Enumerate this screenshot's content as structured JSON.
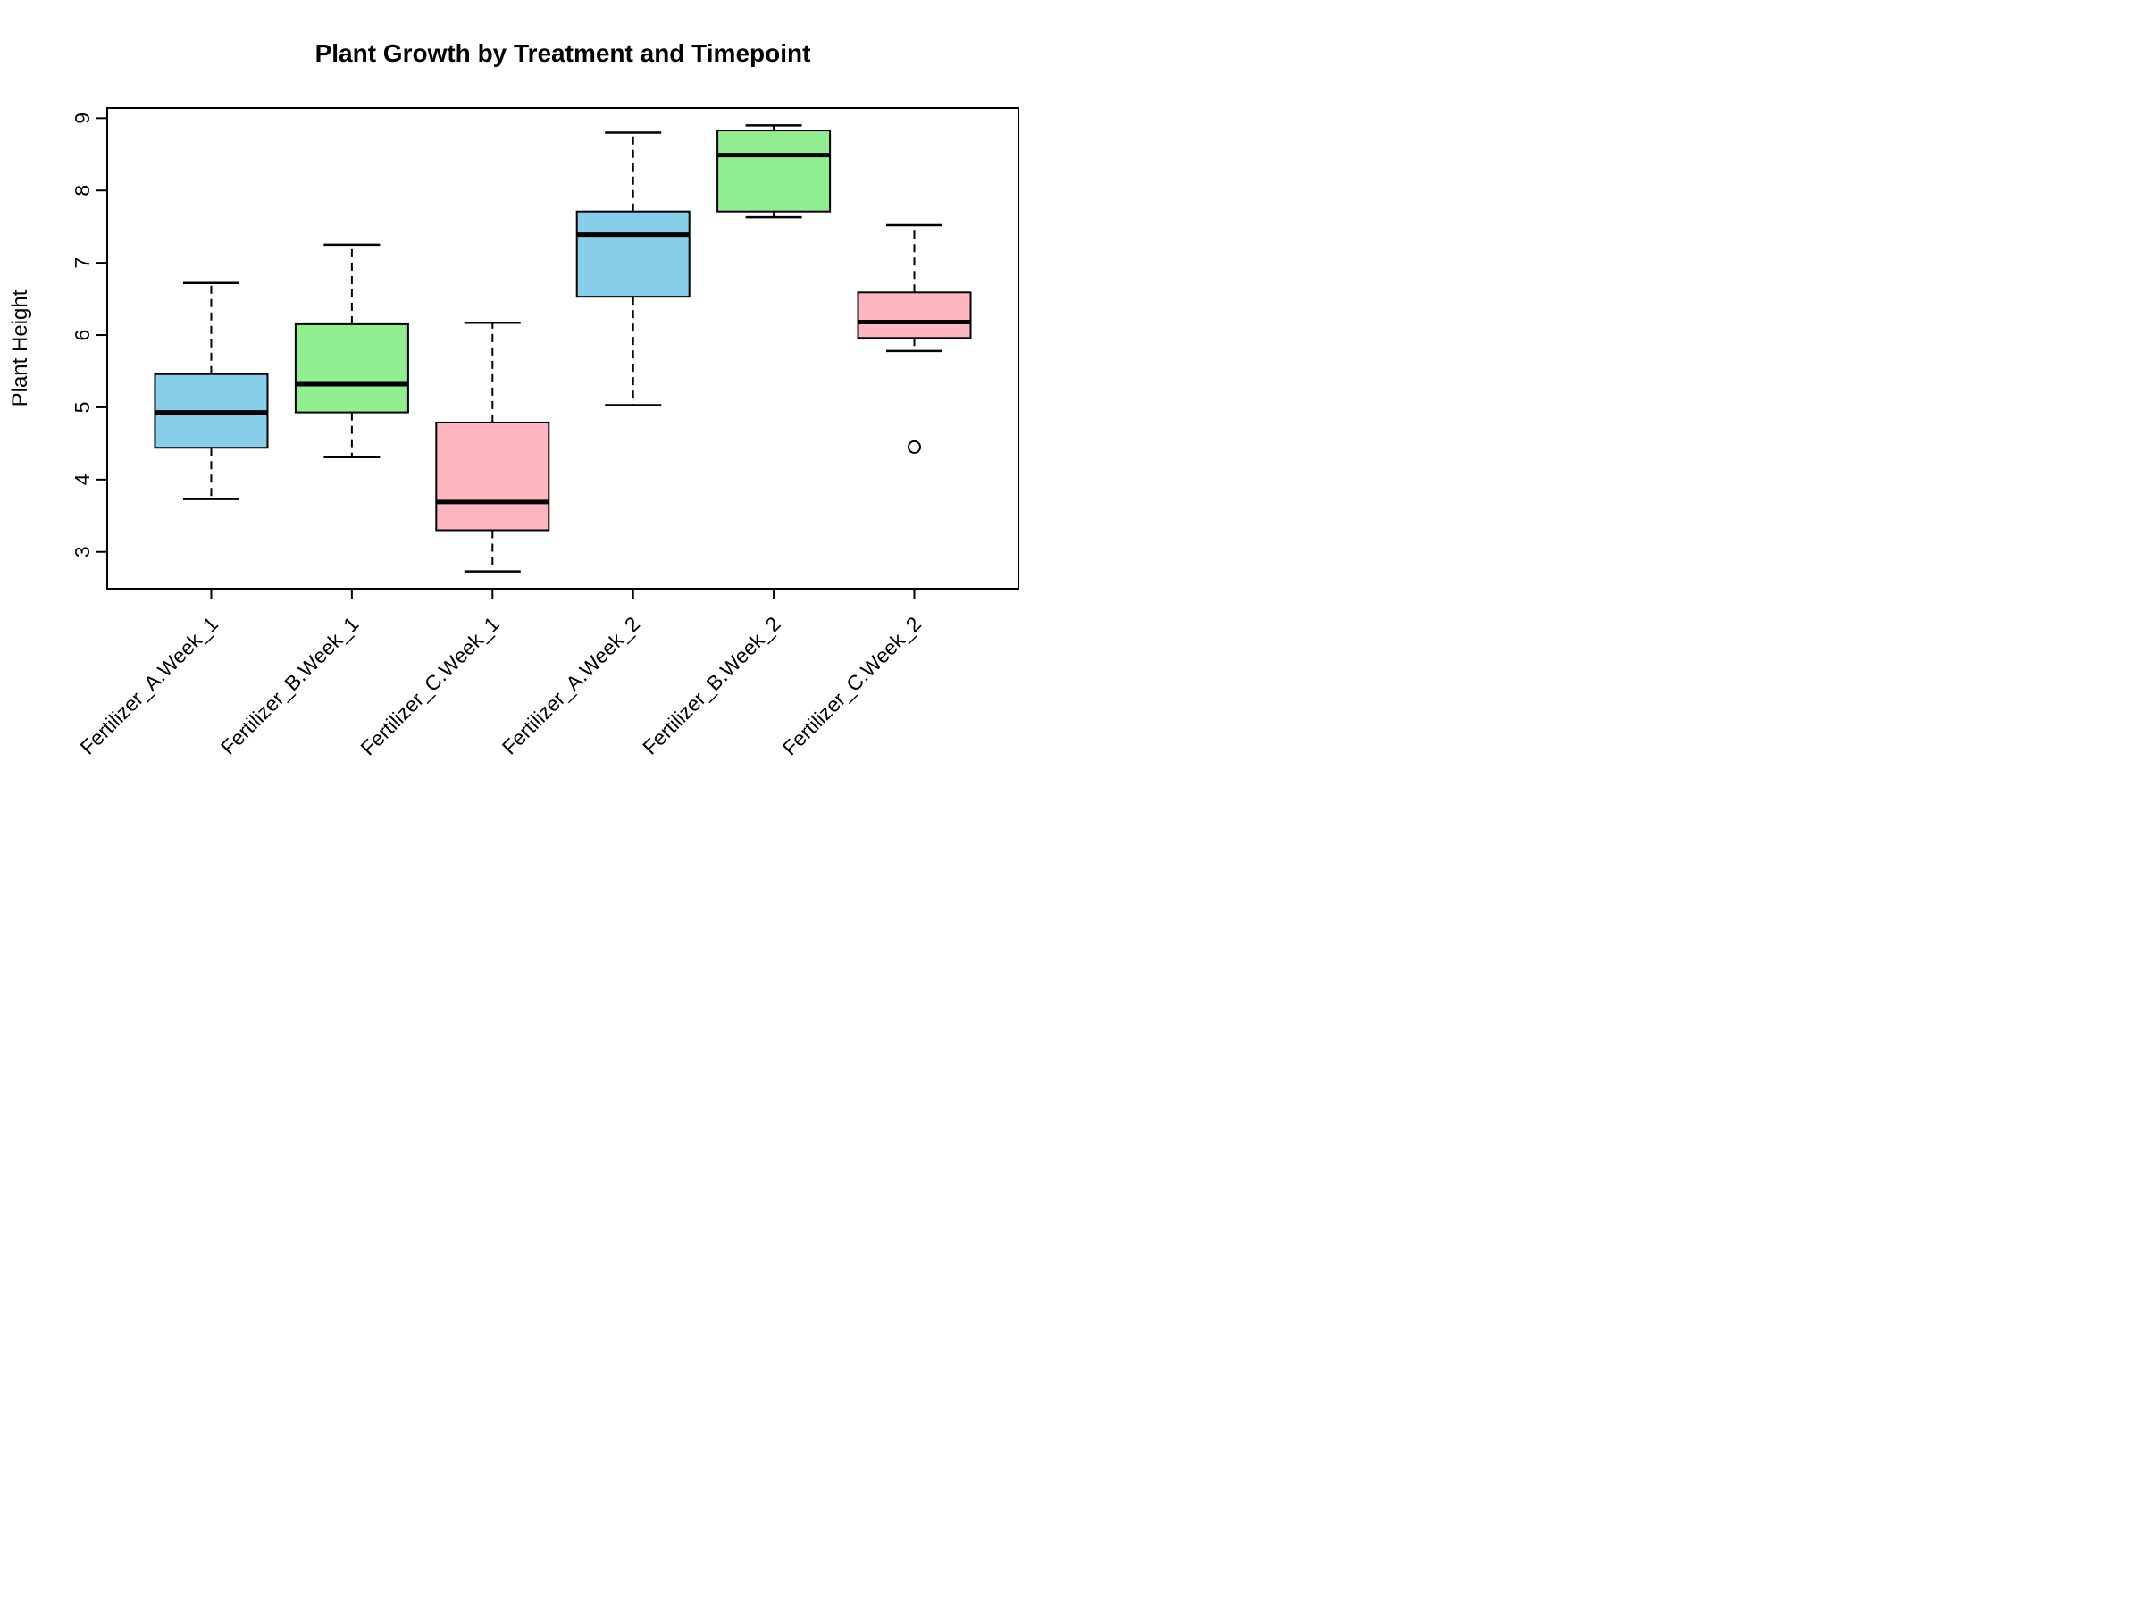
{
  "title": "Plant Growth by Treatment and Timepoint",
  "chart_data": {
    "type": "box",
    "title": "Plant Growth by Treatment and Timepoint",
    "xlabel": "",
    "ylabel": "Plant Height",
    "y_ticks": [
      3,
      4,
      5,
      6,
      7,
      8,
      9
    ],
    "y_axis_range": [
      2.49,
      9.14
    ],
    "grid": "off",
    "legend": "none",
    "groups": [
      {
        "label": "Fertilizer_A.Week_1",
        "color": "#87CEEB",
        "whisker_low": 3.73,
        "q1": 4.44,
        "median": 4.93,
        "q3": 5.46,
        "whisker_high": 6.72,
        "outliers": []
      },
      {
        "label": "Fertilizer_B.Week_1",
        "color": "#90EE90",
        "whisker_low": 4.31,
        "q1": 4.93,
        "median": 5.32,
        "q3": 6.15,
        "whisker_high": 7.25,
        "outliers": []
      },
      {
        "label": "Fertilizer_C.Week_1",
        "color": "#FFB6C1",
        "whisker_low": 2.73,
        "q1": 3.3,
        "median": 3.69,
        "q3": 4.79,
        "whisker_high": 6.17,
        "outliers": []
      },
      {
        "label": "Fertilizer_A.Week_2",
        "color": "#87CEEB",
        "whisker_low": 5.03,
        "q1": 6.53,
        "median": 7.39,
        "q3": 7.71,
        "whisker_high": 8.8,
        "outliers": []
      },
      {
        "label": "Fertilizer_B.Week_2",
        "color": "#90EE90",
        "whisker_low": 7.63,
        "q1": 7.71,
        "median": 8.49,
        "q3": 8.83,
        "whisker_high": 8.9,
        "outliers": []
      },
      {
        "label": "Fertilizer_C.Week_2",
        "color": "#FFB6C1",
        "whisker_low": 5.78,
        "q1": 5.96,
        "median": 6.18,
        "q3": 6.59,
        "whisker_high": 7.52,
        "outliers": [
          4.45
        ]
      }
    ],
    "colors": {
      "box_fill_blue": "#87CEEB",
      "box_fill_green": "#90EE90",
      "box_fill_pink": "#FFB6C1",
      "stroke": "#000000",
      "background": "#FFFFFF"
    }
  }
}
